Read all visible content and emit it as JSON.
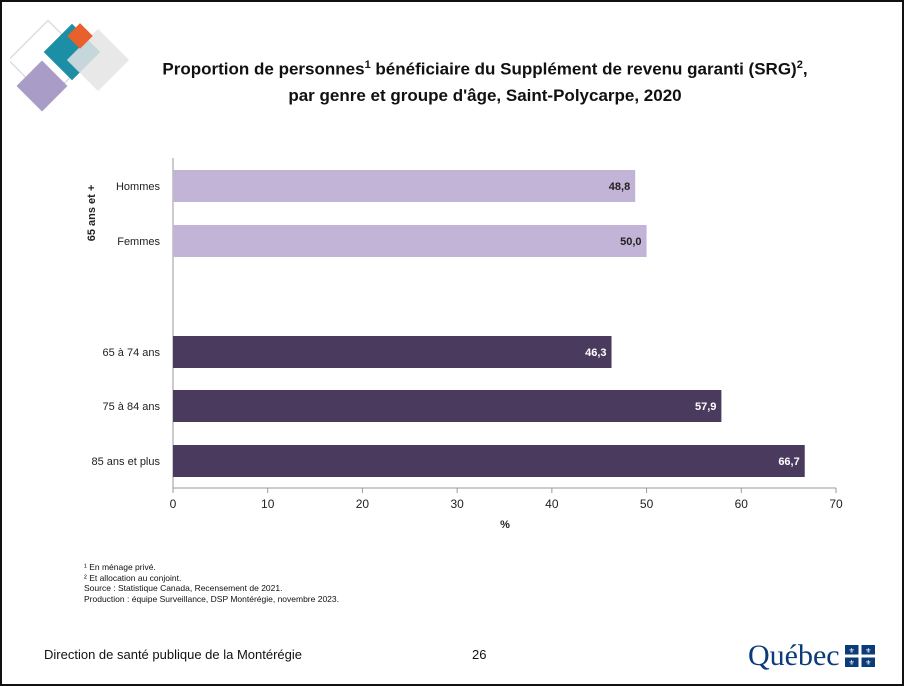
{
  "title": {
    "line1_a": "Proportion de personnes",
    "line1_sup1": "1",
    "line1_b": " bénéficiaire du Supplément de revenu garanti (SRG)",
    "line1_sup2": "2",
    "line1_c": ",",
    "line2": "par genre et groupe d'âge, Saint-Polycarpe, 2020"
  },
  "chart_data": {
    "type": "bar",
    "orientation": "horizontal",
    "group_label": "65 ans et +",
    "categories": [
      "Hommes",
      "Femmes",
      "65 à 74 ans",
      "75 à 84 ans",
      "85 ans et plus"
    ],
    "values": [
      48.8,
      50.0,
      46.3,
      57.9,
      66.7
    ],
    "value_labels": [
      "48,8",
      "50,0",
      "46,3",
      "57,9",
      "66,7"
    ],
    "bar_colors": [
      "#c1b4d6",
      "#c1b4d6",
      "#4a3b5e",
      "#4a3b5e",
      "#4a3b5e"
    ],
    "label_colors": [
      "#222222",
      "#222222",
      "#ffffff",
      "#ffffff",
      "#ffffff"
    ],
    "xlabel": "%",
    "xlim": [
      0,
      70
    ],
    "xticks": [
      0,
      10,
      20,
      30,
      40,
      50,
      60,
      70
    ],
    "grid": false
  },
  "footnotes": [
    "¹ En ménage privé.",
    "² Et allocation au conjoint.",
    "Source : Statistique Canada, Recensement de 2021.",
    "Production : équipe Surveillance, DSP Montérégie, novembre 2023."
  ],
  "footer": {
    "left": "Direction de santé publique de la Montérégie",
    "page": "26",
    "logo_text": "Québec"
  },
  "colors": {
    "light_bar": "#c1b4d6",
    "dark_bar": "#4a3b5e",
    "quebec_blue": "#0b3b78"
  }
}
